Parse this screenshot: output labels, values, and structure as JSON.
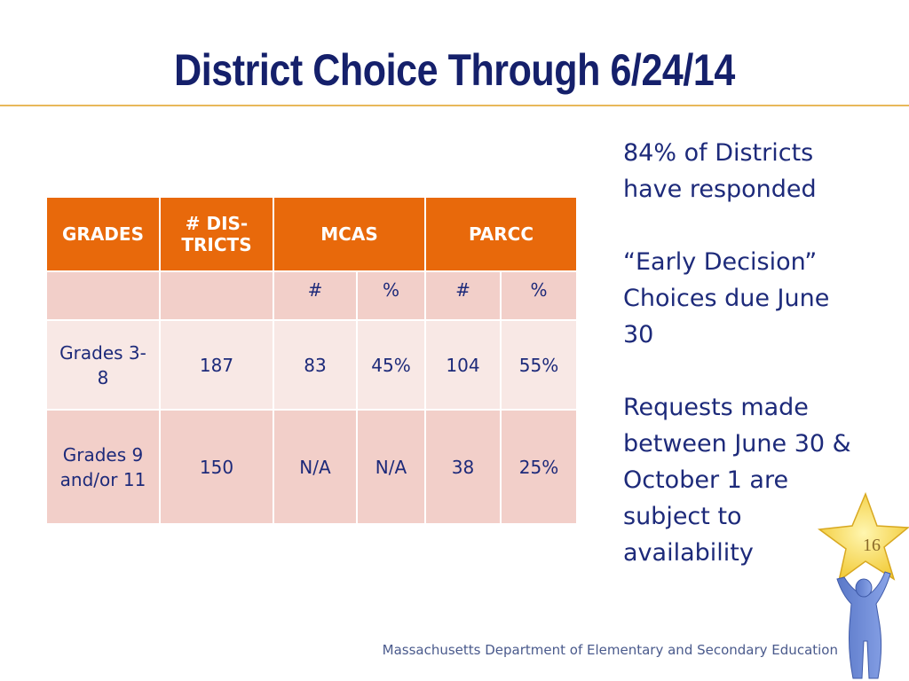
{
  "title": "District Choice Through 6/24/14",
  "table": {
    "headers": [
      "GRADES",
      "# DIS-\nTRICTS",
      "MCAS",
      "PARCC"
    ],
    "subheaders": [
      "",
      "",
      "#",
      "%",
      "#",
      "%"
    ],
    "rows": [
      [
        "Grades 3-8",
        "187",
        "83",
        "45%",
        "104",
        "55%"
      ],
      [
        "Grades 9 and/or 11",
        "150",
        "N/A",
        "N/A",
        "38",
        "25%"
      ]
    ]
  },
  "side_text": [
    "84% of Districts have responded",
    "“Early Decision” Choices due June 30",
    "Requests made between June 30 & October 1 are subject to availability"
  ],
  "footer": "Massachusetts Department of Elementary and Secondary Education",
  "page_number": "16",
  "colors": {
    "title": "#15206b",
    "header_bg": "#e8690b",
    "row_dark": "#f2cfc9",
    "row_light": "#f8e8e5",
    "text": "#1d2a7a",
    "rule": "#e8b85a"
  },
  "logo_icon": "star-person-icon"
}
